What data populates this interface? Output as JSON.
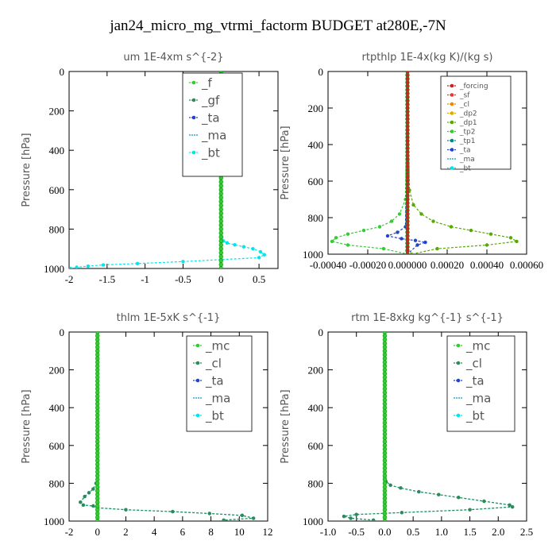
{
  "page": {
    "title": "jan24_micro_mg_vtrmi_factorm  BUDGET at280E,-7N"
  },
  "chart_data": [
    {
      "type": "line",
      "title": "um   1E-4xm  s^{-2}",
      "xlabel": "",
      "ylabel": "Pressure [hPa]",
      "xlim": [
        -2,
        0.75
      ],
      "ylim": [
        1000,
        0
      ],
      "xticks": [
        "-2",
        "-1.5",
        "-1",
        "-0.5",
        "0",
        "0.5"
      ],
      "xtick_values": [
        -2,
        -1.5,
        -1,
        -0.5,
        0,
        0.5
      ],
      "yticks": [
        "0",
        "200",
        "400",
        "600",
        "800",
        "1000"
      ],
      "ytick_values": [
        0,
        200,
        400,
        600,
        800,
        1000
      ],
      "legend_position": "top-right",
      "legend_font": "large",
      "series": [
        {
          "name": "_f",
          "color": "#33cc33",
          "marker": "circle",
          "x": [
            0,
            0
          ],
          "y": [
            0,
            1000
          ]
        },
        {
          "name": "_gf",
          "color": "#2e8b57",
          "marker": "circle",
          "x": [
            0,
            0
          ],
          "y": [
            0,
            1000
          ]
        },
        {
          "name": "_ta",
          "color": "#2244cc",
          "marker": "circle",
          "x": [
            0,
            0
          ],
          "y": [
            0,
            1000
          ]
        },
        {
          "name": "_ma",
          "color": "#0099cc",
          "marker": "none",
          "x": [
            0,
            0
          ],
          "y": [
            0,
            1000
          ]
        },
        {
          "name": "_bt",
          "color": "#00e5ee",
          "marker": "circle",
          "x": [
            0,
            0,
            0.01,
            0.03,
            0.08,
            0.18,
            0.3,
            0.42,
            0.52,
            0.57,
            0.5,
            -0.5,
            -1.1,
            -1.55,
            -1.75,
            -1.9,
            -1.98
          ],
          "y": [
            0,
            820,
            840,
            860,
            870,
            880,
            890,
            900,
            915,
            930,
            945,
            965,
            975,
            982,
            988,
            994,
            1000
          ]
        }
      ]
    },
    {
      "type": "line",
      "title": "rtpthlp   1E-4x(kg K)/(kg s)",
      "xlabel": "",
      "ylabel": "Pressure [hPa]",
      "xlim": [
        -0.0004,
        0.0006
      ],
      "ylim": [
        1000,
        0
      ],
      "xticks": [
        "-0.00040",
        "-0.00020",
        "0.000000",
        "0.00020",
        "0.00040",
        "0.00060"
      ],
      "xtick_values": [
        -0.0004,
        -0.0002,
        0,
        0.0002,
        0.0004,
        0.0006
      ],
      "yticks": [
        "0",
        "200",
        "400",
        "600",
        "800",
        "1000"
      ],
      "ytick_values": [
        0,
        200,
        400,
        600,
        800,
        1000
      ],
      "legend_position": "top-right",
      "legend_font": "small",
      "series": [
        {
          "name": "_forcing",
          "color": "#cc2222",
          "marker": "circle",
          "x": [
            0,
            0
          ],
          "y": [
            0,
            1000
          ]
        },
        {
          "name": "_sf",
          "color": "#ee3333",
          "marker": "circle",
          "x": [
            0,
            0
          ],
          "y": [
            0,
            1000
          ]
        },
        {
          "name": "_cl",
          "color": "#ee8800",
          "marker": "circle",
          "x": [
            0,
            0
          ],
          "y": [
            0,
            1000
          ]
        },
        {
          "name": "_dp2",
          "color": "#ddaa00",
          "marker": "circle",
          "x": [
            0,
            0
          ],
          "y": [
            0,
            1000
          ]
        },
        {
          "name": "_dp1",
          "color": "#55aa00",
          "marker": "circle",
          "x": [
            0,
            1e-05,
            3e-05,
            7e-05,
            0.00013,
            0.00022,
            0.00032,
            0.00042,
            0.00052,
            0.00055,
            0.0004,
            0.00015,
            2e-05
          ],
          "y": [
            0,
            650,
            730,
            780,
            820,
            850,
            870,
            890,
            910,
            930,
            950,
            970,
            1000
          ]
        },
        {
          "name": "_tp2",
          "color": "#33cc33",
          "marker": "circle",
          "x": [
            0,
            -1e-05,
            -4e-05,
            -8e-05,
            -0.00014,
            -0.00022,
            -0.0003,
            -0.00036,
            -0.00038,
            -0.0003,
            -0.00012,
            0
          ],
          "y": [
            0,
            700,
            780,
            820,
            850,
            870,
            890,
            910,
            930,
            950,
            970,
            1000
          ]
        },
        {
          "name": "_tp1",
          "color": "#008888",
          "marker": "circle",
          "x": [
            0,
            0
          ],
          "y": [
            0,
            1000
          ]
        },
        {
          "name": "_ta",
          "color": "#2244cc",
          "marker": "circle",
          "x": [
            0,
            -1e-05,
            -5e-05,
            -0.0001,
            -3e-05,
            4e-05,
            9e-05,
            5e-05,
            0
          ],
          "y": [
            0,
            850,
            880,
            900,
            915,
            925,
            935,
            950,
            1000
          ]
        },
        {
          "name": "_ma",
          "color": "#0099cc",
          "marker": "none",
          "x": [
            0,
            0
          ],
          "y": [
            0,
            1000
          ]
        },
        {
          "name": "_bt",
          "color": "#00e5ee",
          "marker": "circle",
          "x": [
            0,
            0
          ],
          "y": [
            0,
            1000
          ]
        }
      ]
    },
    {
      "type": "line",
      "title": "thlm   1E-5xK  s^{-1}",
      "xlabel": "",
      "ylabel": "Pressure [hPa]",
      "xlim": [
        -2,
        12
      ],
      "ylim": [
        1000,
        0
      ],
      "xticks": [
        "-2",
        "0",
        "2",
        "4",
        "6",
        "8",
        "10",
        "12"
      ],
      "xtick_values": [
        -2,
        0,
        2,
        4,
        6,
        8,
        10,
        12
      ],
      "yticks": [
        "0",
        "200",
        "400",
        "600",
        "800",
        "1000"
      ],
      "ytick_values": [
        0,
        200,
        400,
        600,
        800,
        1000
      ],
      "legend_position": "top-right",
      "legend_font": "large",
      "series": [
        {
          "name": "_mc",
          "color": "#33cc33",
          "marker": "circle",
          "x": [
            0,
            0
          ],
          "y": [
            0,
            1000
          ]
        },
        {
          "name": "_cl",
          "color": "#2e8b57",
          "marker": "circle",
          "x": [
            0,
            0,
            -0.1,
            -0.3,
            -0.6,
            -0.9,
            -1.2,
            -1.0,
            -0.3,
            0,
            2,
            5.3,
            7.9,
            10.2,
            11,
            8.9
          ],
          "y": [
            0,
            780,
            800,
            830,
            850,
            870,
            900,
            915,
            920,
            930,
            940,
            950,
            960,
            970,
            985,
            995
          ]
        },
        {
          "name": "_ta",
          "color": "#2244cc",
          "marker": "circle",
          "x": [
            0,
            0
          ],
          "y": [
            0,
            1000
          ]
        },
        {
          "name": "_ma",
          "color": "#0099cc",
          "marker": "none",
          "x": [
            0,
            0
          ],
          "y": [
            0,
            1000
          ]
        },
        {
          "name": "_bt",
          "color": "#00e5ee",
          "marker": "circle",
          "x": [
            0,
            0,
            -0.1,
            -0.3,
            -0.6,
            -0.9,
            -1.2,
            -1.0,
            -0.3,
            0,
            2,
            5.3,
            7.9,
            10.2,
            11,
            8.9
          ],
          "y": [
            0,
            780,
            800,
            830,
            850,
            870,
            900,
            915,
            920,
            930,
            940,
            950,
            960,
            970,
            985,
            995
          ]
        }
      ]
    },
    {
      "type": "line",
      "title": "rtm   1E-8xkg kg^{-1} s^{-1}",
      "xlabel": "",
      "ylabel": "Pressure [hPa]",
      "xlim": [
        -1,
        2.5
      ],
      "ylim": [
        1000,
        0
      ],
      "xticks": [
        "-1.0",
        "-0.5",
        "0.0",
        "0.5",
        "1.0",
        "1.5",
        "2.0",
        "2.5"
      ],
      "xtick_values": [
        -1,
        -0.5,
        0,
        0.5,
        1,
        1.5,
        2,
        2.5
      ],
      "yticks": [
        "0",
        "200",
        "400",
        "600",
        "800",
        "1000"
      ],
      "ytick_values": [
        0,
        200,
        400,
        600,
        800,
        1000
      ],
      "legend_position": "top-right",
      "legend_font": "large",
      "series": [
        {
          "name": "_mc",
          "color": "#33cc33",
          "marker": "circle",
          "x": [
            0,
            0
          ],
          "y": [
            0,
            1000
          ]
        },
        {
          "name": "_cl",
          "color": "#2e8b57",
          "marker": "circle",
          "x": [
            0,
            0,
            0.02,
            0.1,
            0.28,
            0.6,
            0.95,
            1.3,
            1.75,
            2.2,
            2.25,
            1.5,
            0.3,
            -0.5,
            -0.72,
            -0.6,
            -0.2
          ],
          "y": [
            0,
            770,
            790,
            810,
            825,
            845,
            860,
            875,
            895,
            915,
            925,
            940,
            955,
            965,
            975,
            985,
            995
          ]
        },
        {
          "name": "_ta",
          "color": "#2244cc",
          "marker": "circle",
          "x": [
            0,
            0
          ],
          "y": [
            0,
            1000
          ]
        },
        {
          "name": "_ma",
          "color": "#0099cc",
          "marker": "none",
          "x": [
            0,
            0
          ],
          "y": [
            0,
            1000
          ]
        },
        {
          "name": "_bt",
          "color": "#00e5ee",
          "marker": "circle",
          "x": [
            0,
            0,
            0.02,
            0.1,
            0.28,
            0.6,
            0.95,
            1.3,
            1.75,
            2.2,
            2.25,
            1.5,
            0.3,
            -0.5,
            -0.72,
            -0.6,
            -0.2
          ],
          "y": [
            0,
            770,
            790,
            810,
            825,
            845,
            860,
            875,
            895,
            915,
            925,
            940,
            955,
            965,
            975,
            985,
            995
          ]
        }
      ]
    }
  ]
}
